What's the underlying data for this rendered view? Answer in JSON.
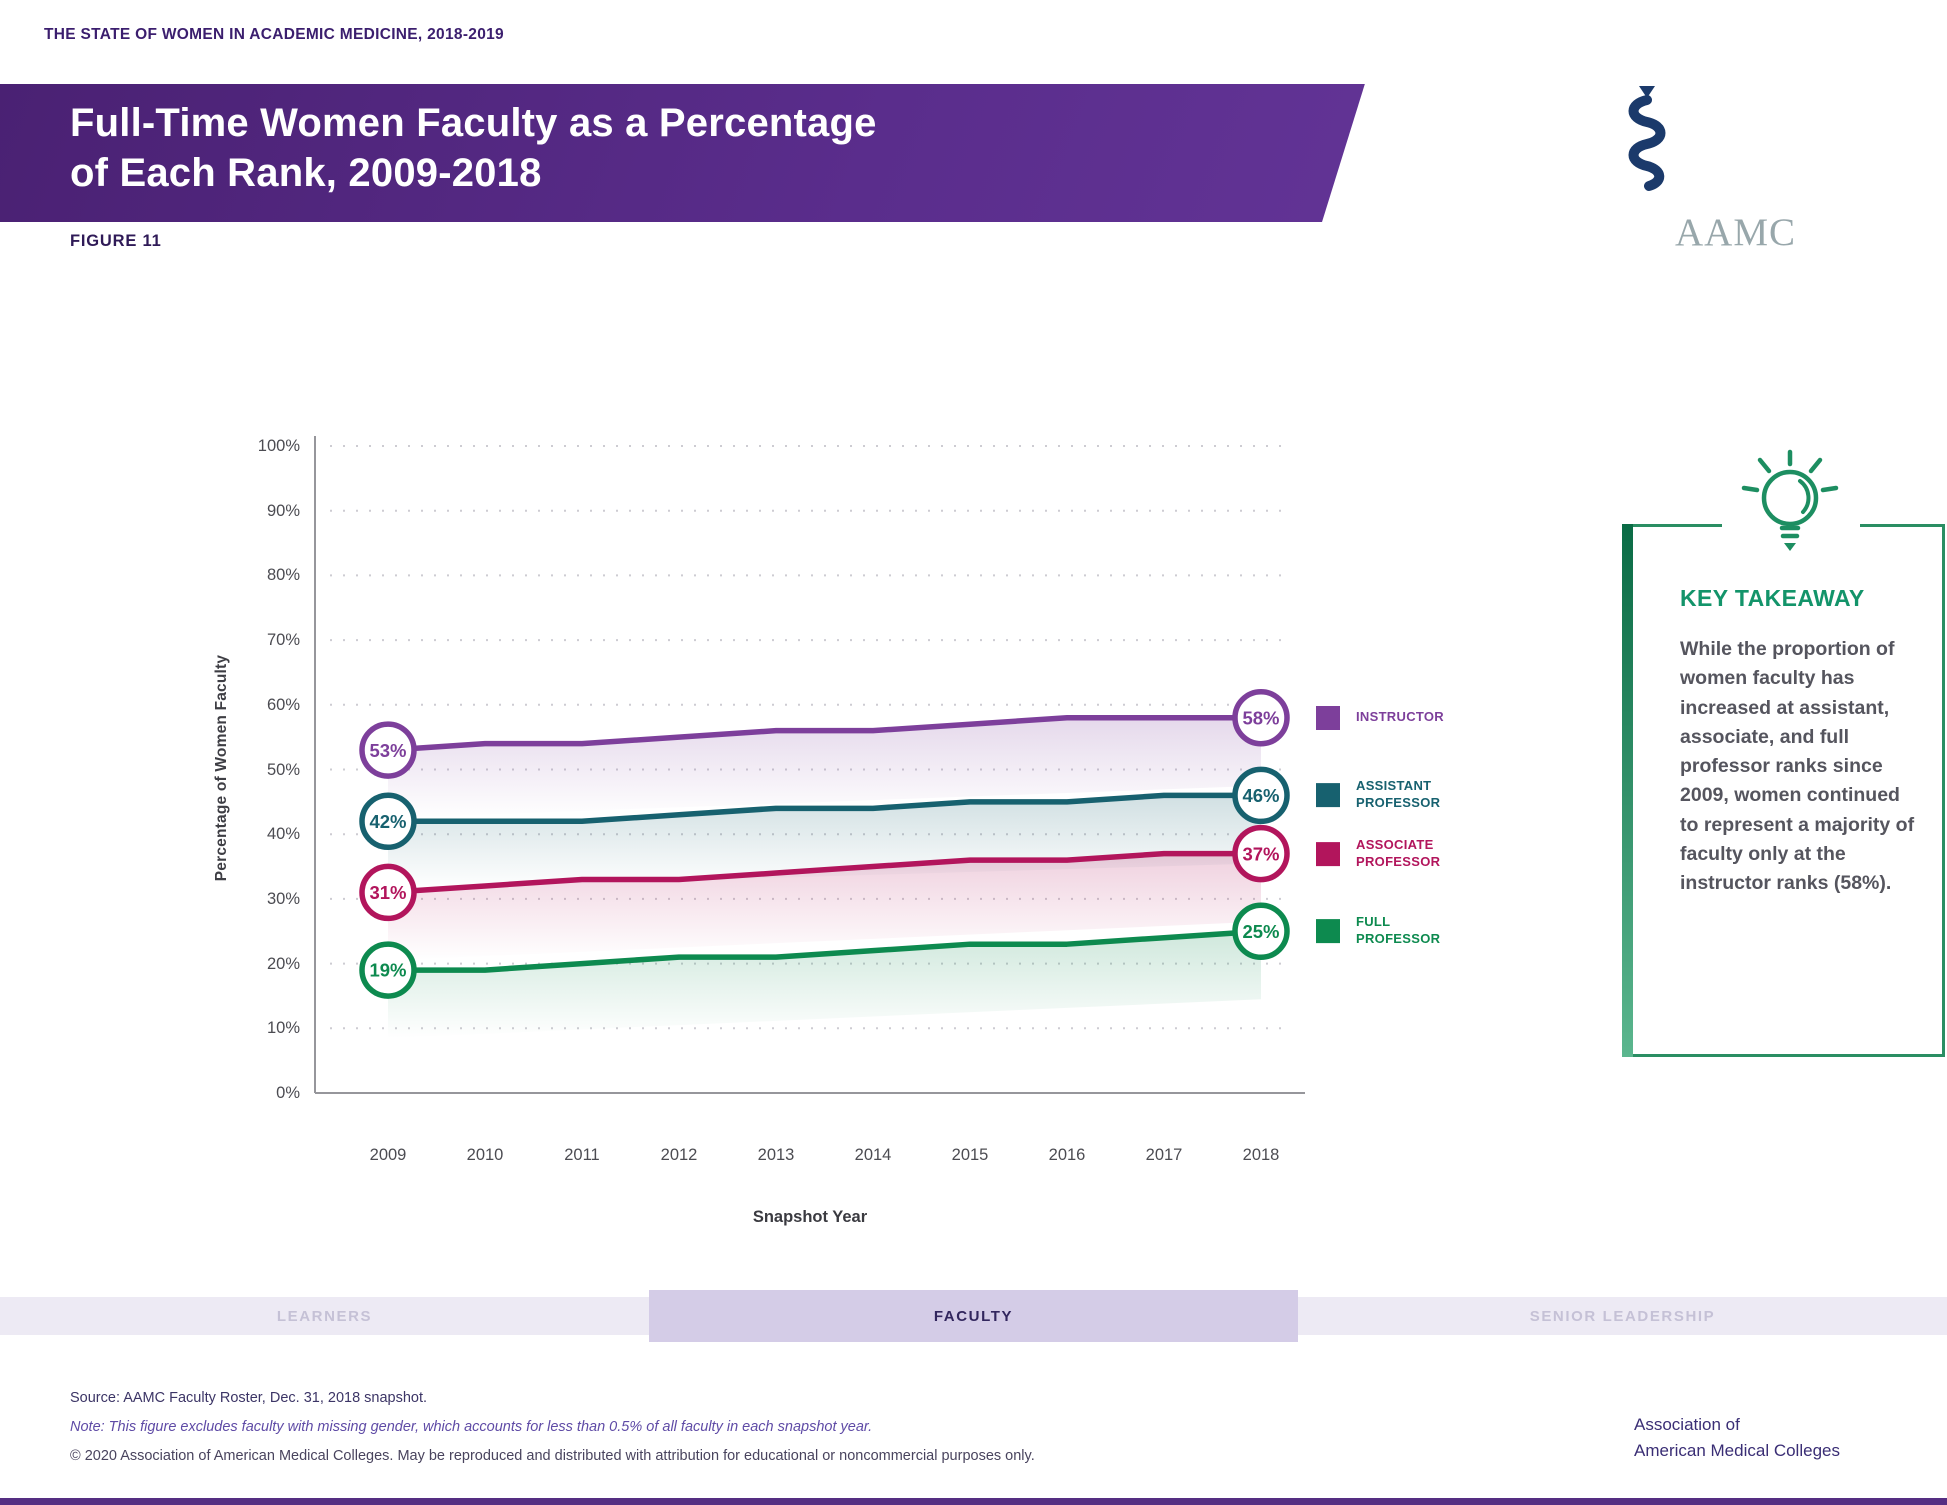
{
  "eyebrow": "THE STATE OF WOMEN IN ACADEMIC MEDICINE, 2018-2019",
  "banner": {
    "title_line1": "Full-Time Women Faculty as a Percentage",
    "title_line2": "of Each Rank, 2009-2018"
  },
  "logo": {
    "text": "AAMC",
    "serpent_color": "#1b3a6b",
    "text_color": "#98a7ab"
  },
  "figure_label": "FIGURE 11",
  "chart_data": {
    "type": "line",
    "x": [
      2009,
      2010,
      2011,
      2012,
      2013,
      2014,
      2015,
      2016,
      2017,
      2018
    ],
    "series": [
      {
        "name": "INSTRUCTOR",
        "legend_lines": [
          "INSTRUCTOR"
        ],
        "color": "#7d3f9b",
        "values": [
          53,
          54,
          54,
          55,
          56,
          56,
          57,
          58,
          58,
          58
        ],
        "start_label": "53%",
        "end_label": "58%"
      },
      {
        "name": "ASSISTANT PROFESSOR",
        "legend_lines": [
          "ASSISTANT",
          "PROFESSOR"
        ],
        "color": "#17616f",
        "values": [
          42,
          42,
          42,
          43,
          44,
          44,
          45,
          45,
          46,
          46
        ],
        "start_label": "42%",
        "end_label": "46%"
      },
      {
        "name": "ASSOCIATE PROFESSOR",
        "legend_lines": [
          "ASSOCIATE",
          "PROFESSOR"
        ],
        "color": "#b2155c",
        "values": [
          31,
          32,
          33,
          33,
          34,
          35,
          36,
          36,
          37,
          37
        ],
        "start_label": "31%",
        "end_label": "37%"
      },
      {
        "name": "FULL PROFESSOR",
        "legend_lines": [
          "FULL",
          "PROFESSOR"
        ],
        "color": "#0d8a4f",
        "values": [
          19,
          19,
          20,
          21,
          21,
          22,
          23,
          23,
          24,
          25
        ],
        "start_label": "19%",
        "end_label": "25%"
      }
    ],
    "xlabel": "Snapshot Year",
    "ylabel": "Percentage of Women Faculty",
    "ylim": [
      0,
      100
    ],
    "ytick_step": 10,
    "ytick_suffix": "%",
    "grid": "dotted"
  },
  "takeaway": {
    "heading": "KEY TAKEAWAY",
    "body": "While the proportion of women faculty has increased at assistant, associate, and full professor ranks since 2009, women continued to represent a majority of faculty only at the instructor ranks (58%).",
    "accent_color": "#13946a"
  },
  "footer_nav": {
    "items": [
      {
        "label": "LEARNERS",
        "active": false
      },
      {
        "label": "FACULTY",
        "active": true
      },
      {
        "label": "SENIOR LEADERSHIP",
        "active": false
      }
    ]
  },
  "source_block": {
    "source": "Source: AAMC Faculty Roster, Dec. 31, 2018 snapshot.",
    "note": "Note: This figure excludes faculty with missing gender, which accounts for less than 0.5% of all faculty in each snapshot year.",
    "copyright": "© 2020 Association of American Medical Colleges. May be reproduced and distributed with attribution for educational or noncommercial purposes only."
  },
  "org_name": {
    "line1": "Association of",
    "line2": "American Medical Colleges"
  }
}
